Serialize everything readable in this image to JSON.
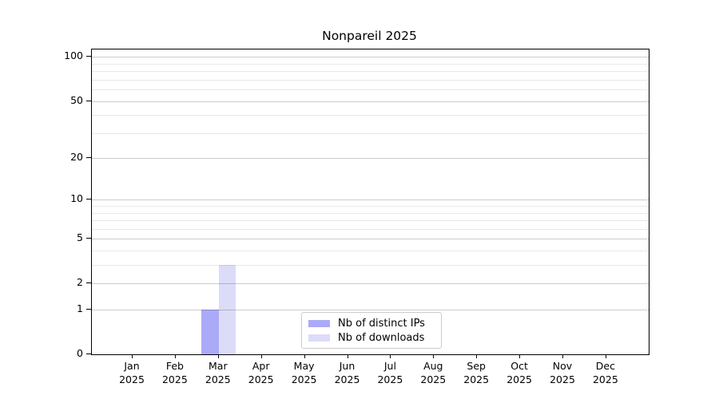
{
  "figure": {
    "background": "#ffffff"
  },
  "chart_data": {
    "type": "bar",
    "title": "Nonpareil 2025",
    "categories": [
      "Jan",
      "Feb",
      "Mar",
      "Apr",
      "May",
      "Jun",
      "Jul",
      "Aug",
      "Sep",
      "Oct",
      "Nov",
      "Dec"
    ],
    "category_year": "2025",
    "series": [
      {
        "name": "Nb of distinct IPs",
        "color": "#aaaaf8",
        "values": [
          0,
          0,
          1,
          0,
          0,
          0,
          0,
          0,
          0,
          0,
          0,
          0
        ]
      },
      {
        "name": "Nb of downloads",
        "color": "#dcdcf8",
        "values": [
          0,
          0,
          3,
          0,
          0,
          0,
          0,
          0,
          0,
          0,
          0,
          0
        ]
      }
    ],
    "xlabel": "",
    "ylabel": "",
    "y_scale": "log10(1+y)",
    "ylim": [
      0,
      113
    ],
    "y_major_ticks": [
      0,
      1,
      2,
      5,
      10,
      20,
      50,
      100
    ],
    "y_minor_gridlines": [
      3,
      4,
      6,
      7,
      8,
      9,
      30,
      40,
      60,
      70,
      80,
      90
    ],
    "grid": "horizontal",
    "legend_position": "lower-center"
  },
  "colors": {
    "major_grid": "rgba(0,0,0,0.20)",
    "minor_grid": "rgba(0,0,0,0.09)",
    "spine": "#000000",
    "text": "#000000",
    "legend_border": "#cccccc"
  }
}
